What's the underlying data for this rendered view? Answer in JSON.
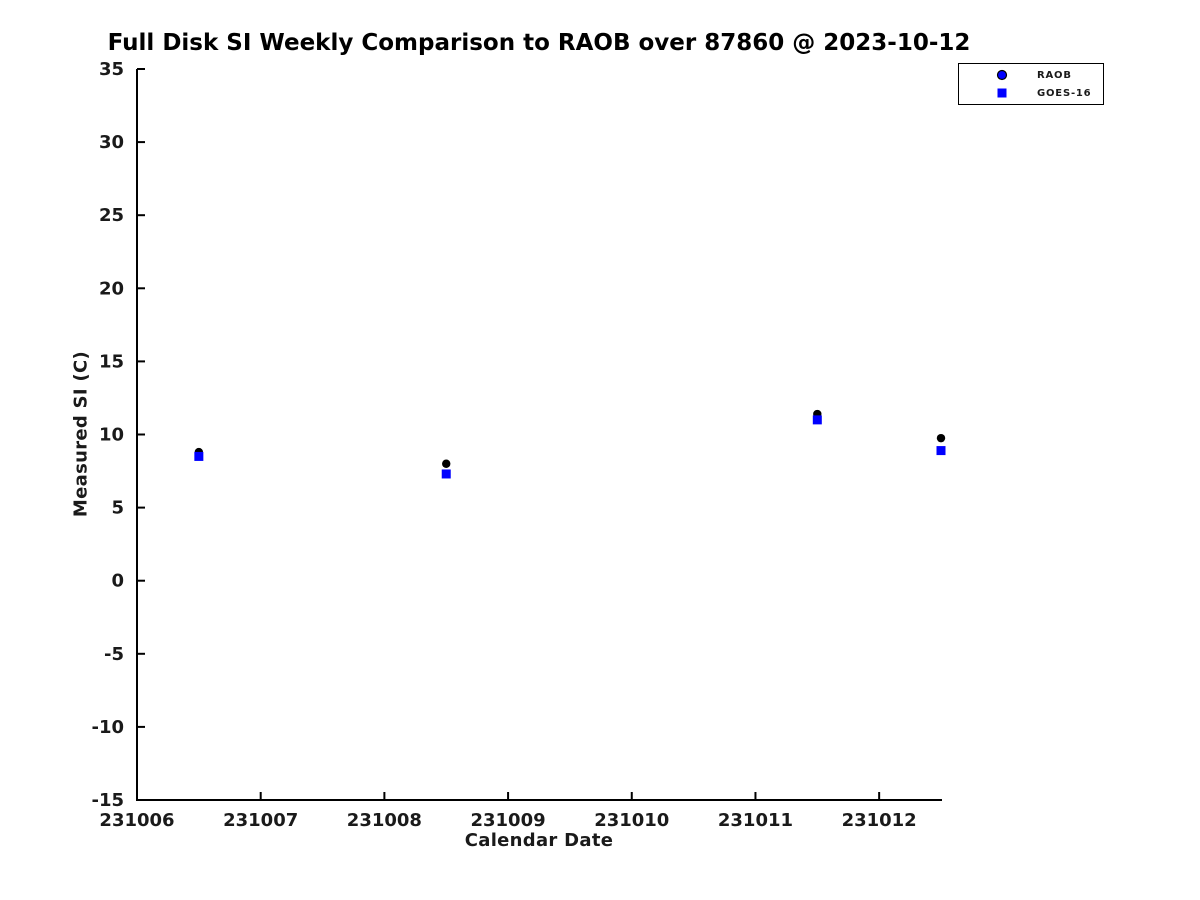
{
  "chart_data": {
    "type": "scatter",
    "title": "Full Disk SI Weekly Comparison to RAOB over 87860 @ 2023-10-12",
    "xlabel": "Calendar Date",
    "ylabel": "Measured SI (C)",
    "xlim": [
      231006,
      231012.5
    ],
    "ylim": [
      -15,
      35
    ],
    "xticks": [
      "231006",
      "231007",
      "231008",
      "231009",
      "231010",
      "231011",
      "231012"
    ],
    "yticks": [
      "-15",
      "-10",
      "-5",
      "0",
      "5",
      "10",
      "15",
      "20",
      "25",
      "30",
      "35"
    ],
    "grid": false,
    "legend_position": "outside-top-right",
    "x": [
      231006.5,
      231008.5,
      231011.5,
      231012.5
    ],
    "series": [
      {
        "name": "RAOB",
        "marker": "circle",
        "plot_color": "#000000",
        "legend_color": "#0000ff",
        "values": [
          8.8,
          8.0,
          11.4,
          9.75
        ]
      },
      {
        "name": "GOES-16",
        "marker": "square",
        "plot_color": "#0000ff",
        "legend_color": "#0000ff",
        "values": [
          8.5,
          7.3,
          11.0,
          8.9
        ]
      }
    ],
    "colors": {
      "marker_blue": "#0000ff",
      "marker_black": "#000000",
      "axis": "#000000",
      "tick_text": "#1a1a1a",
      "background": "#ffffff"
    }
  }
}
